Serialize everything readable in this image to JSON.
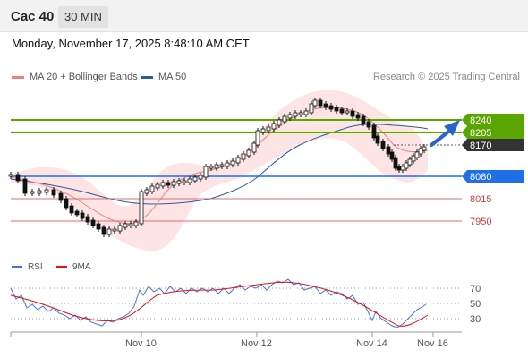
{
  "header": {
    "symbol": "Cac 40",
    "interval": "30 MIN"
  },
  "timestamp": "Monday, November 17, 2025 8:48:10 AM CET",
  "legend": {
    "ma20_label": "MA 20 + Bollinger Bands",
    "ma20_color": "#f08080",
    "ma50_label": "MA 50",
    "ma50_color": "#2e5a9c"
  },
  "credit": "Research © 2025 Trading Central",
  "levels": {
    "resistance_2": "8240",
    "resistance_1": "8205",
    "last_price": "8170",
    "pivot": "8080",
    "support_1": "8015",
    "support_2": "7950",
    "resistance_color": "#5aa500",
    "pivot_color": "#1f6fe6",
    "support_color": "#e05050",
    "last_color": "#333333"
  },
  "indicator": {
    "rsi_label": "RSI",
    "rsi_color": "#4a72d8",
    "ma9_label": "9MA",
    "ma9_color": "#dd1111",
    "levels": [
      "70",
      "50",
      "30"
    ]
  },
  "x_axis": {
    "ticks": [
      "Nov 10",
      "Nov 12",
      "Nov 14",
      "Nov 16"
    ]
  }
}
